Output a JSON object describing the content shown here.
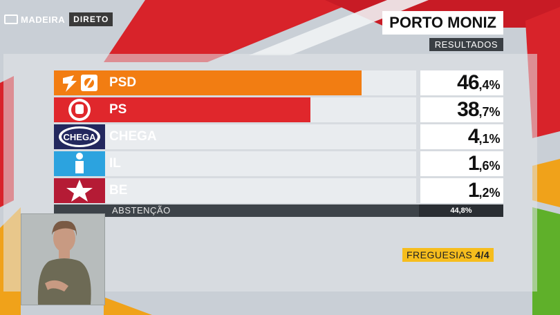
{
  "broadcast": {
    "channel": "MADEIRA",
    "live_label": "DIRETO",
    "location": "PORTO MONIZ",
    "section": "RESULTADOS"
  },
  "results": [
    {
      "party": "PSD | CDS",
      "int": "46",
      "dec": ",4%",
      "value": 46.4,
      "color": "#f27d12",
      "logo_icon": "psd-cds-logo"
    },
    {
      "party": "PS",
      "int": "38",
      "dec": ",7%",
      "value": 38.7,
      "color": "#e0272c",
      "logo_icon": "ps-logo"
    },
    {
      "party": "CHEGA",
      "int": "4",
      "dec": ",1%",
      "value": 4.1,
      "color": "#23285e",
      "logo_icon": "chega-logo"
    },
    {
      "party": "IL",
      "int": "1",
      "dec": ",6%",
      "value": 1.6,
      "color": "#2ca3df",
      "logo_icon": "il-logo"
    },
    {
      "party": "BE",
      "int": "1",
      "dec": ",2%",
      "value": 1.2,
      "color": "#b51b35",
      "logo_icon": "be-logo"
    }
  ],
  "logo_text": {
    "chega": "CHEGA"
  },
  "abstention": {
    "label": "ABSTENÇÃO",
    "value": "44,8%"
  },
  "parishes": {
    "label": "FREGUESIAS",
    "count": "4/4"
  }
}
